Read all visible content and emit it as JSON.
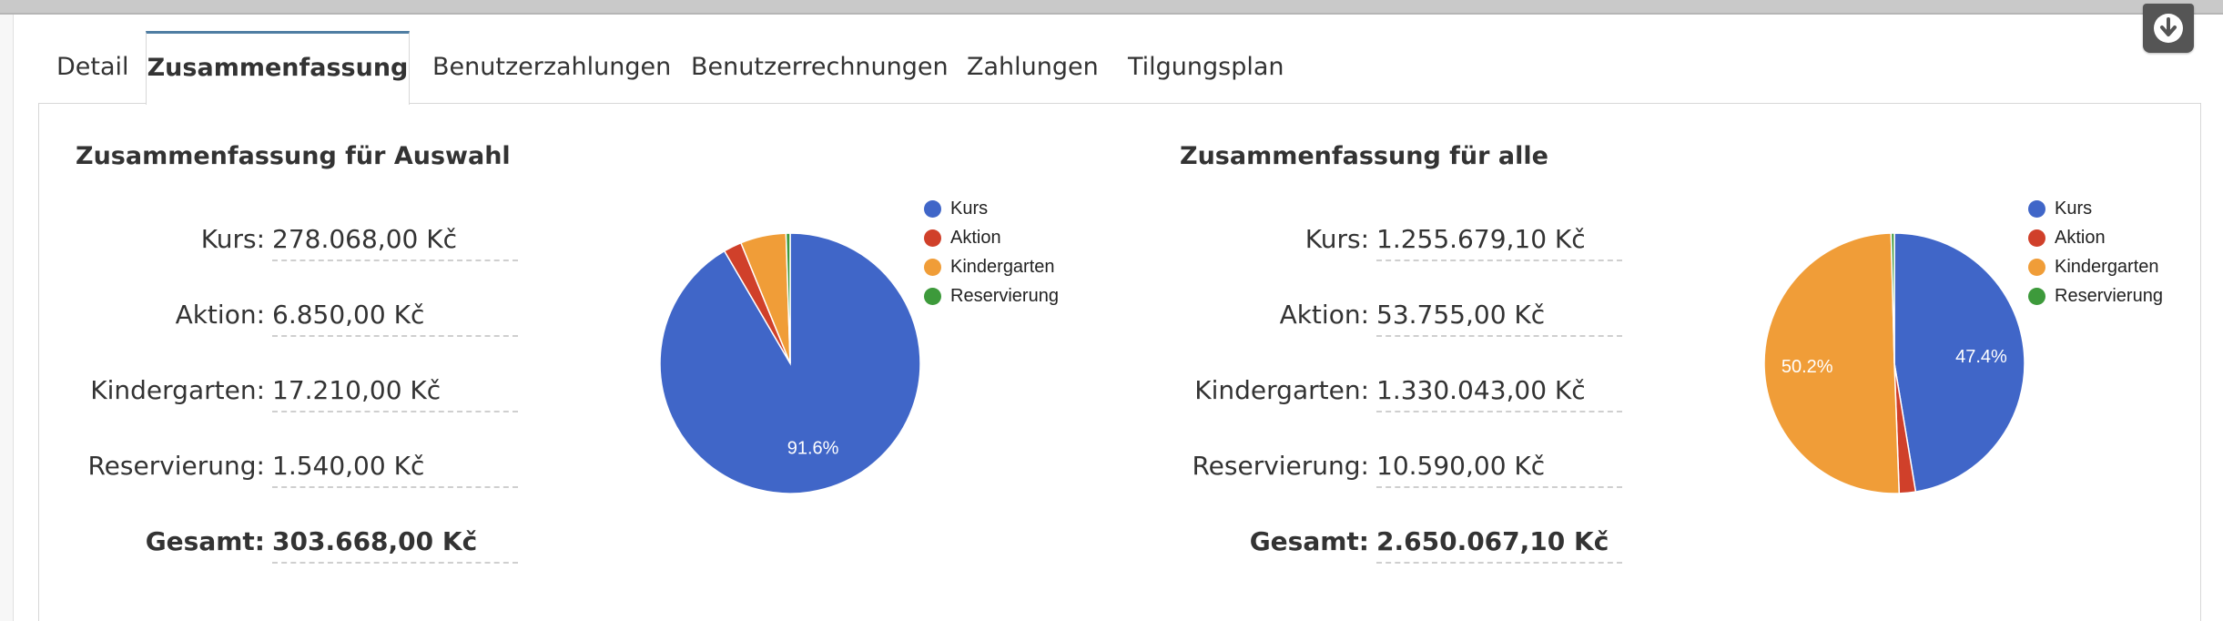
{
  "tabs": [
    {
      "label": "Detail"
    },
    {
      "label": "Zusammenfassung",
      "active": true
    },
    {
      "label": "Benutzerzahlungen"
    },
    {
      "label": "Benutzerrechnungen"
    },
    {
      "label": "Zahlungen"
    },
    {
      "label": "Tilgungsplan"
    }
  ],
  "download_icon": "download-circle-icon",
  "selection": {
    "title": "Zusammenfassung für Auswahl",
    "rows": [
      {
        "label": "Kurs:",
        "value": "278.068,00 Kč"
      },
      {
        "label": "Aktion:",
        "value": "6.850,00 Kč"
      },
      {
        "label": "Kindergarten:",
        "value": "17.210,00 Kč"
      },
      {
        "label": "Reservierung:",
        "value": "1.540,00 Kč"
      },
      {
        "label": "Gesamt:",
        "value": "303.668,00 Kč"
      }
    ]
  },
  "all": {
    "title": "Zusammenfassung für alle",
    "rows": [
      {
        "label": "Kurs:",
        "value": "1.255.679,10 Kč"
      },
      {
        "label": "Aktion:",
        "value": "53.755,00 Kč"
      },
      {
        "label": "Kindergarten:",
        "value": "1.330.043,00 Kč"
      },
      {
        "label": "Reservierung:",
        "value": "10.590,00 Kč"
      },
      {
        "label": "Gesamt:",
        "value": "2.650.067,10 Kč"
      }
    ]
  },
  "colors": {
    "Kurs": "#4066c8",
    "Aktion": "#d0402a",
    "Kindergarten": "#f09d38",
    "Reservierung": "#3d9a3b",
    "tab_accent": "#4f7ea3"
  },
  "chart_data": [
    {
      "type": "pie",
      "legend": [
        "Kurs",
        "Aktion",
        "Kindergarten",
        "Reservierung"
      ],
      "legend_position": "right",
      "values": [
        278068.0,
        6850.0,
        17210.0,
        1540.0
      ],
      "data_labels": [
        "91.6%",
        "",
        "",
        ""
      ]
    },
    {
      "type": "pie",
      "legend": [
        "Kurs",
        "Aktion",
        "Kindergarten",
        "Reservierung"
      ],
      "legend_position": "right",
      "values": [
        1255679.1,
        53755.0,
        1330043.0,
        10590.0
      ],
      "data_labels": [
        "47.4%",
        "",
        "50.2%",
        ""
      ]
    }
  ]
}
